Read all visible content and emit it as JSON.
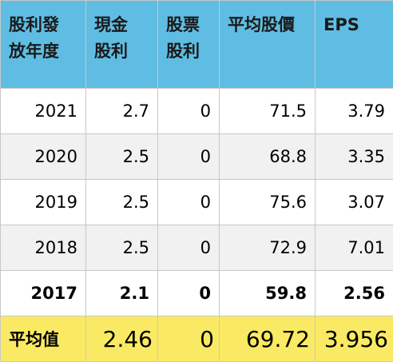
{
  "table": {
    "headers": [
      [
        "股利發",
        "放年度"
      ],
      [
        "現金",
        "股利"
      ],
      [
        "股票",
        "股利"
      ],
      [
        "平均股價"
      ],
      [
        "EPS"
      ]
    ],
    "rows": [
      {
        "year": "2021",
        "cash_dividend": "2.7",
        "stock_dividend": "0",
        "avg_price": "71.5",
        "eps": "3.79"
      },
      {
        "year": "2020",
        "cash_dividend": "2.5",
        "stock_dividend": "0",
        "avg_price": "68.8",
        "eps": "3.35"
      },
      {
        "year": "2019",
        "cash_dividend": "2.5",
        "stock_dividend": "0",
        "avg_price": "75.6",
        "eps": "3.07"
      },
      {
        "year": "2018",
        "cash_dividend": "2.5",
        "stock_dividend": "0",
        "avg_price": "72.9",
        "eps": "7.01"
      },
      {
        "year": "2017",
        "cash_dividend": "2.1",
        "stock_dividend": "0",
        "avg_price": "59.8",
        "eps": "2.56"
      }
    ],
    "average": {
      "label": "平均值",
      "cash_dividend": "2.46",
      "stock_dividend": "0",
      "avg_price": "69.72",
      "eps": "3.956"
    }
  },
  "colors": {
    "header_bg": "#5fbde3",
    "average_row_bg": "#faea63",
    "striped_row_bg": "#f1f1f1"
  }
}
